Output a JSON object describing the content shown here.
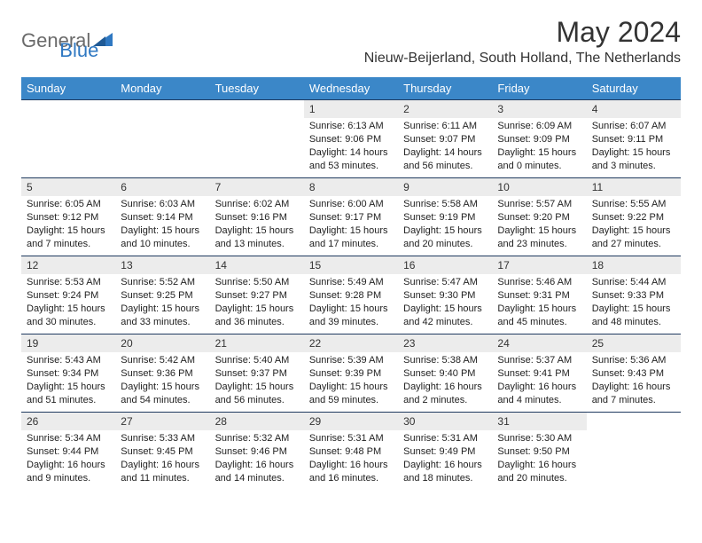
{
  "logo": {
    "general": "General",
    "blue": "Blue"
  },
  "title": "May 2024",
  "location": "Nieuw-Beijerland, South Holland, The Netherlands",
  "colors": {
    "header_bg": "#3b87c8",
    "header_text": "#ffffff",
    "daynum_bg": "#ececec",
    "border": "#1f3a5f",
    "logo_gray": "#6a6a6a",
    "logo_blue": "#2f78c2"
  },
  "weekdays": [
    "Sunday",
    "Monday",
    "Tuesday",
    "Wednesday",
    "Thursday",
    "Friday",
    "Saturday"
  ],
  "weeks": [
    [
      null,
      null,
      null,
      {
        "n": "1",
        "sr": "6:13 AM",
        "ss": "9:06 PM",
        "dl": "14 hours and 53 minutes."
      },
      {
        "n": "2",
        "sr": "6:11 AM",
        "ss": "9:07 PM",
        "dl": "14 hours and 56 minutes."
      },
      {
        "n": "3",
        "sr": "6:09 AM",
        "ss": "9:09 PM",
        "dl": "15 hours and 0 minutes."
      },
      {
        "n": "4",
        "sr": "6:07 AM",
        "ss": "9:11 PM",
        "dl": "15 hours and 3 minutes."
      }
    ],
    [
      {
        "n": "5",
        "sr": "6:05 AM",
        "ss": "9:12 PM",
        "dl": "15 hours and 7 minutes."
      },
      {
        "n": "6",
        "sr": "6:03 AM",
        "ss": "9:14 PM",
        "dl": "15 hours and 10 minutes."
      },
      {
        "n": "7",
        "sr": "6:02 AM",
        "ss": "9:16 PM",
        "dl": "15 hours and 13 minutes."
      },
      {
        "n": "8",
        "sr": "6:00 AM",
        "ss": "9:17 PM",
        "dl": "15 hours and 17 minutes."
      },
      {
        "n": "9",
        "sr": "5:58 AM",
        "ss": "9:19 PM",
        "dl": "15 hours and 20 minutes."
      },
      {
        "n": "10",
        "sr": "5:57 AM",
        "ss": "9:20 PM",
        "dl": "15 hours and 23 minutes."
      },
      {
        "n": "11",
        "sr": "5:55 AM",
        "ss": "9:22 PM",
        "dl": "15 hours and 27 minutes."
      }
    ],
    [
      {
        "n": "12",
        "sr": "5:53 AM",
        "ss": "9:24 PM",
        "dl": "15 hours and 30 minutes."
      },
      {
        "n": "13",
        "sr": "5:52 AM",
        "ss": "9:25 PM",
        "dl": "15 hours and 33 minutes."
      },
      {
        "n": "14",
        "sr": "5:50 AM",
        "ss": "9:27 PM",
        "dl": "15 hours and 36 minutes."
      },
      {
        "n": "15",
        "sr": "5:49 AM",
        "ss": "9:28 PM",
        "dl": "15 hours and 39 minutes."
      },
      {
        "n": "16",
        "sr": "5:47 AM",
        "ss": "9:30 PM",
        "dl": "15 hours and 42 minutes."
      },
      {
        "n": "17",
        "sr": "5:46 AM",
        "ss": "9:31 PM",
        "dl": "15 hours and 45 minutes."
      },
      {
        "n": "18",
        "sr": "5:44 AM",
        "ss": "9:33 PM",
        "dl": "15 hours and 48 minutes."
      }
    ],
    [
      {
        "n": "19",
        "sr": "5:43 AM",
        "ss": "9:34 PM",
        "dl": "15 hours and 51 minutes."
      },
      {
        "n": "20",
        "sr": "5:42 AM",
        "ss": "9:36 PM",
        "dl": "15 hours and 54 minutes."
      },
      {
        "n": "21",
        "sr": "5:40 AM",
        "ss": "9:37 PM",
        "dl": "15 hours and 56 minutes."
      },
      {
        "n": "22",
        "sr": "5:39 AM",
        "ss": "9:39 PM",
        "dl": "15 hours and 59 minutes."
      },
      {
        "n": "23",
        "sr": "5:38 AM",
        "ss": "9:40 PM",
        "dl": "16 hours and 2 minutes."
      },
      {
        "n": "24",
        "sr": "5:37 AM",
        "ss": "9:41 PM",
        "dl": "16 hours and 4 minutes."
      },
      {
        "n": "25",
        "sr": "5:36 AM",
        "ss": "9:43 PM",
        "dl": "16 hours and 7 minutes."
      }
    ],
    [
      {
        "n": "26",
        "sr": "5:34 AM",
        "ss": "9:44 PM",
        "dl": "16 hours and 9 minutes."
      },
      {
        "n": "27",
        "sr": "5:33 AM",
        "ss": "9:45 PM",
        "dl": "16 hours and 11 minutes."
      },
      {
        "n": "28",
        "sr": "5:32 AM",
        "ss": "9:46 PM",
        "dl": "16 hours and 14 minutes."
      },
      {
        "n": "29",
        "sr": "5:31 AM",
        "ss": "9:48 PM",
        "dl": "16 hours and 16 minutes."
      },
      {
        "n": "30",
        "sr": "5:31 AM",
        "ss": "9:49 PM",
        "dl": "16 hours and 18 minutes."
      },
      {
        "n": "31",
        "sr": "5:30 AM",
        "ss": "9:50 PM",
        "dl": "16 hours and 20 minutes."
      },
      null
    ]
  ],
  "labels": {
    "sunrise": "Sunrise: ",
    "sunset": "Sunset: ",
    "daylight": "Daylight: "
  }
}
